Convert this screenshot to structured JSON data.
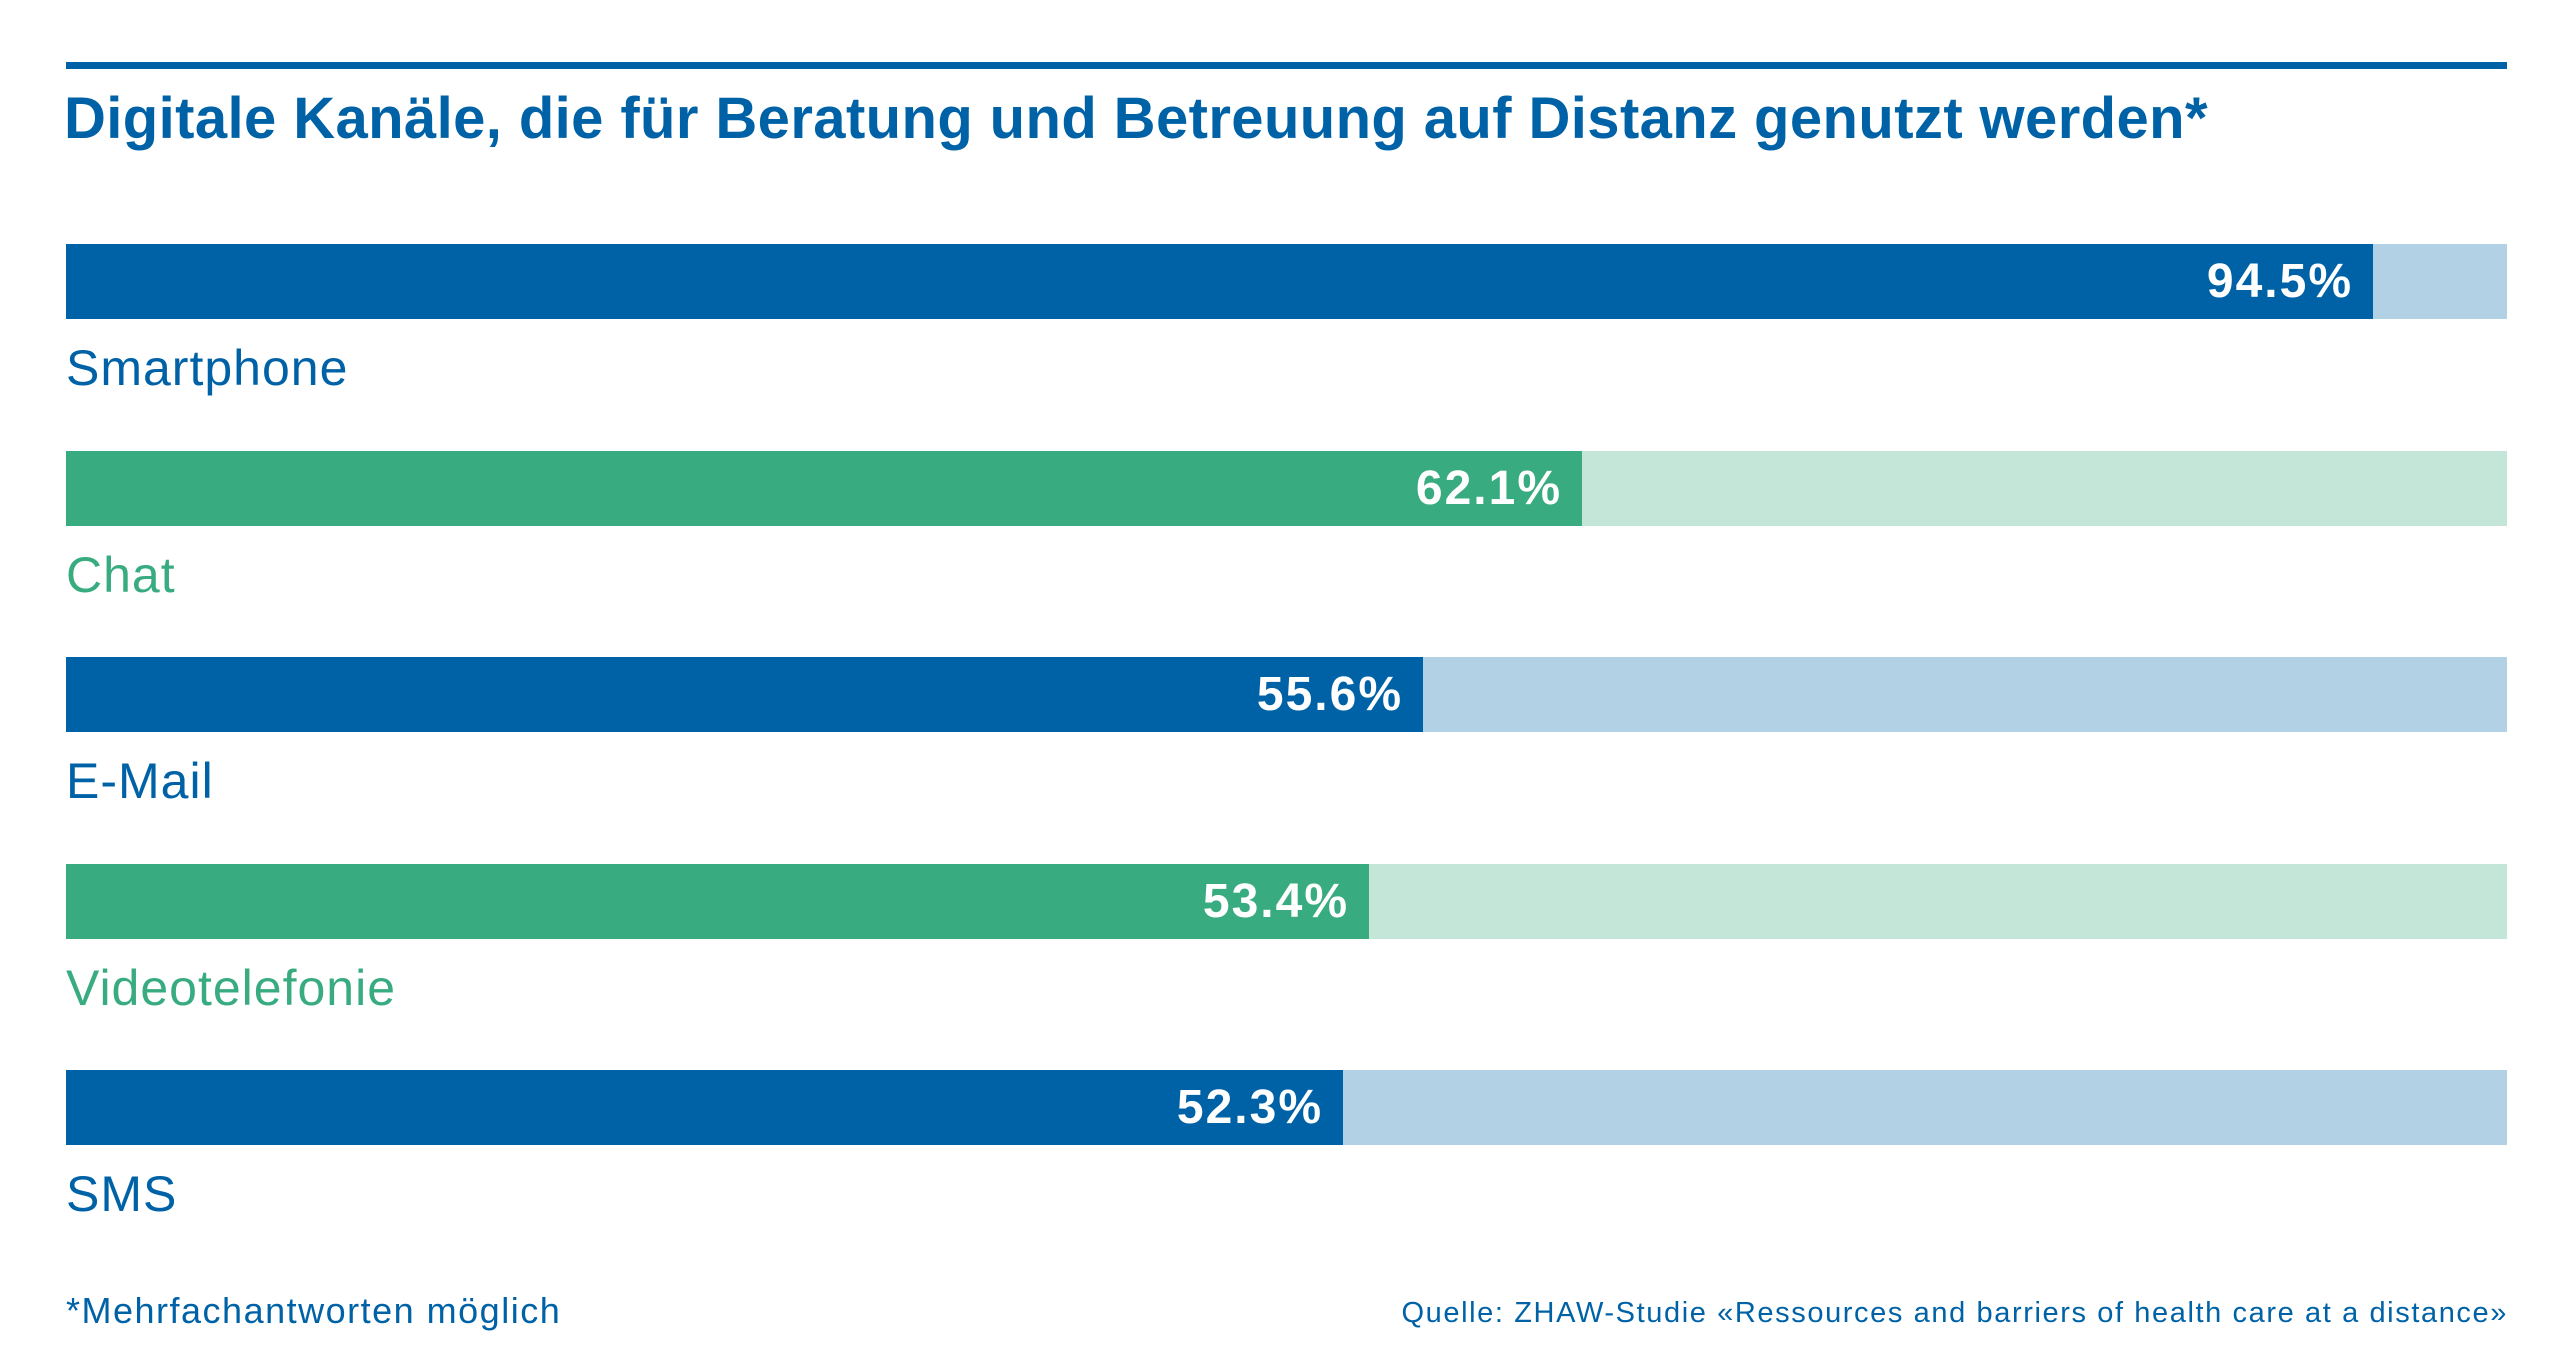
{
  "title": "Digitale Kanäle, die für Beratung und Betreuung auf Distanz genutzt werden*",
  "footnote": "*Mehrfachantworten möglich",
  "source": "Quelle: ZHAW-Studie «Ressources and barriers of health care at a distance»",
  "colors": {
    "blue": "#0062a6",
    "blue_light": "#b3d1e4",
    "green": "#38ac80",
    "green_light": "#c4e6d8"
  },
  "chart_data": {
    "type": "bar",
    "orientation": "horizontal",
    "categories": [
      "Smartphone",
      "Chat",
      "E-Mail",
      "Videotelefonie",
      "SMS"
    ],
    "values": [
      94.5,
      62.1,
      55.6,
      53.4,
      52.3
    ],
    "value_labels": [
      "94.5%",
      "62.1%",
      "55.6%",
      "53.4%",
      "52.3%"
    ],
    "bar_colors": [
      "#0062a6",
      "#38ac80",
      "#0062a6",
      "#38ac80",
      "#0062a6"
    ],
    "track_colors": [
      "#b3d1e4",
      "#c4e6d8",
      "#b3d1e4",
      "#c4e6d8",
      "#b3d1e4"
    ],
    "xlim": [
      0,
      100
    ],
    "unit": "%",
    "grid": false,
    "legend": "none"
  }
}
